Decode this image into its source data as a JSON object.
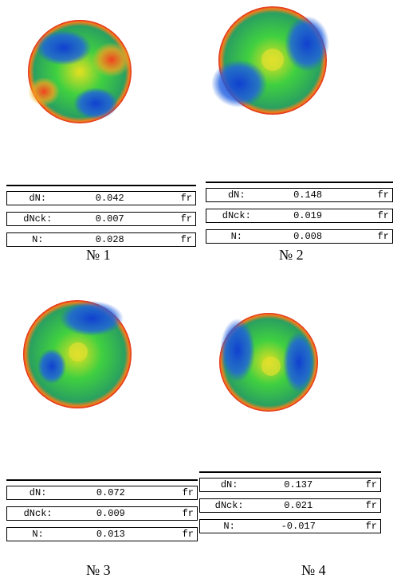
{
  "panels": [
    {
      "label": "№ 1",
      "rows": [
        {
          "name": "dN:",
          "value": 0.042,
          "unit": "fr"
        },
        {
          "name": "dNck:",
          "value": 0.007,
          "unit": "fr"
        },
        {
          "name": "N:",
          "value": 0.028,
          "unit": "fr"
        }
      ]
    },
    {
      "label": "№ 2",
      "rows": [
        {
          "name": "dN:",
          "value": 0.148,
          "unit": "fr"
        },
        {
          "name": "dNck:",
          "value": 0.019,
          "unit": "fr"
        },
        {
          "name": "N:",
          "value": 0.008,
          "unit": "fr"
        }
      ]
    },
    {
      "label": "№ 3",
      "rows": [
        {
          "name": "dN:",
          "value": 0.072,
          "unit": "fr"
        },
        {
          "name": "dNck:",
          "value": 0.009,
          "unit": "fr"
        },
        {
          "name": "N:",
          "value": 0.013,
          "unit": "fr"
        }
      ]
    },
    {
      "label": "№ 4",
      "rows": [
        {
          "name": "dN:",
          "value": 0.137,
          "unit": "fr"
        },
        {
          "name": "dNck:",
          "value": 0.021,
          "unit": "fr"
        },
        {
          "name": "N:",
          "value": -0.017,
          "unit": "fr"
        }
      ]
    }
  ]
}
